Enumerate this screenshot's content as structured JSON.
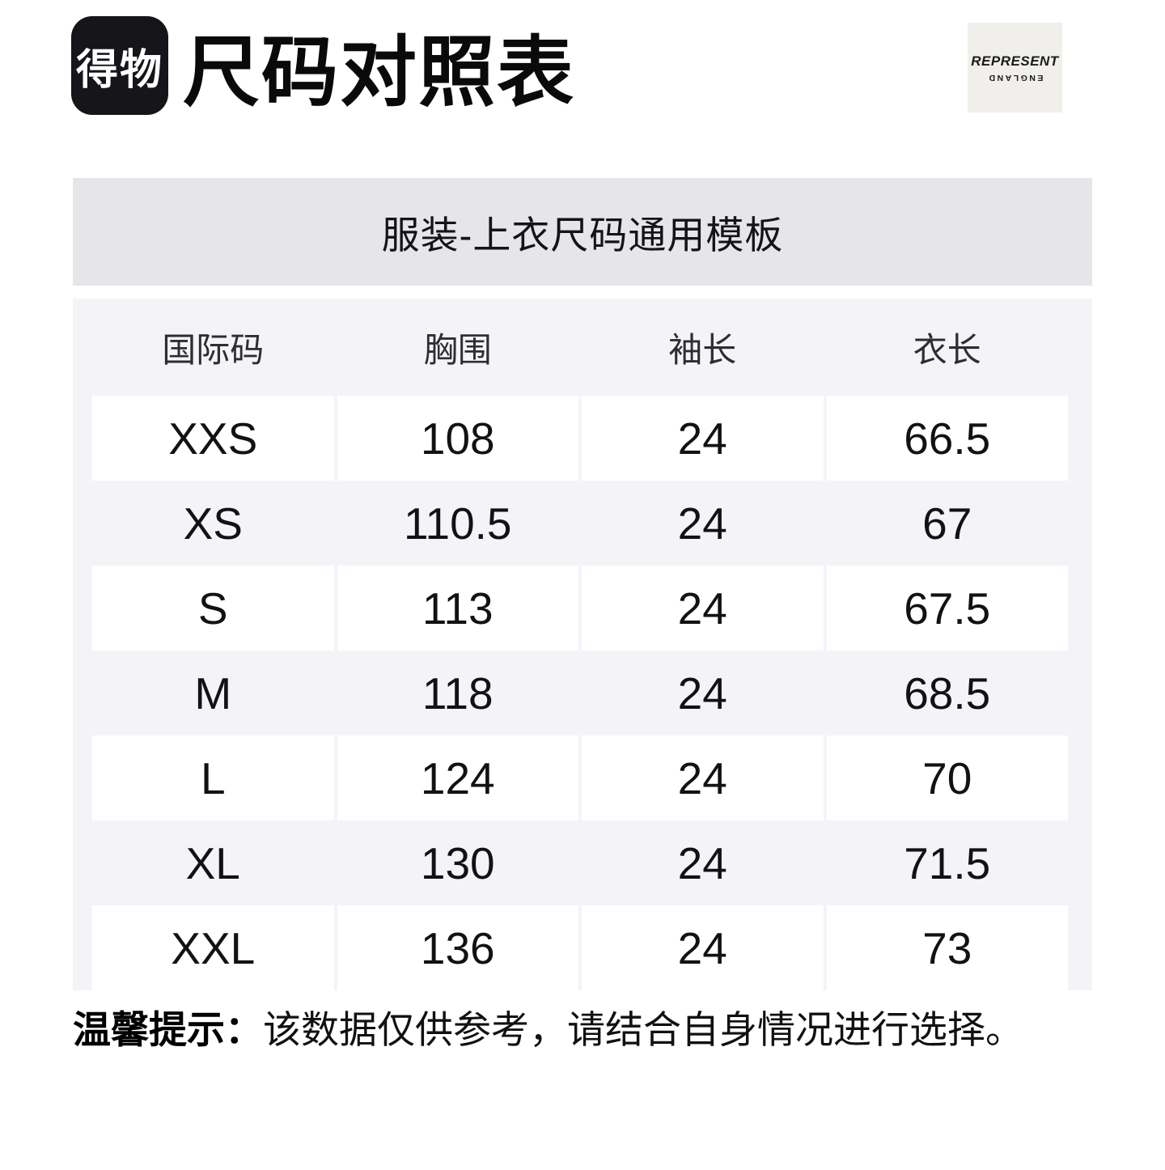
{
  "header": {
    "logo_text": "得物",
    "title": "尺码对照表",
    "brand": {
      "name": "REPRESENT",
      "sub": "ENGLAND"
    }
  },
  "banner": {
    "title": "服装-上衣尺码通用模板"
  },
  "size_table": {
    "columns": [
      "国际码",
      "胸围",
      "袖长",
      "衣长"
    ],
    "rows": [
      [
        "XXS",
        "108",
        "24",
        "66.5"
      ],
      [
        "XS",
        "110.5",
        "24",
        "67"
      ],
      [
        "S",
        "113",
        "24",
        "67.5"
      ],
      [
        "M",
        "118",
        "24",
        "68.5"
      ],
      [
        "L",
        "124",
        "24",
        "70"
      ],
      [
        "XL",
        "130",
        "24",
        "71.5"
      ],
      [
        "XXL",
        "136",
        "24",
        "73"
      ]
    ]
  },
  "footer": {
    "notice_label": "温馨提示：",
    "notice_text": "该数据仅供参考，请结合自身情况进行选择。"
  },
  "colors": {
    "page_bg": "#ffffff",
    "logo_bg": "#15151a",
    "brand_bg": "#f0efeb",
    "banner_bg": "#e5e5ea",
    "table_bg": "#f4f4f8",
    "cell_bg": "#ffffff",
    "text": "#121212"
  }
}
